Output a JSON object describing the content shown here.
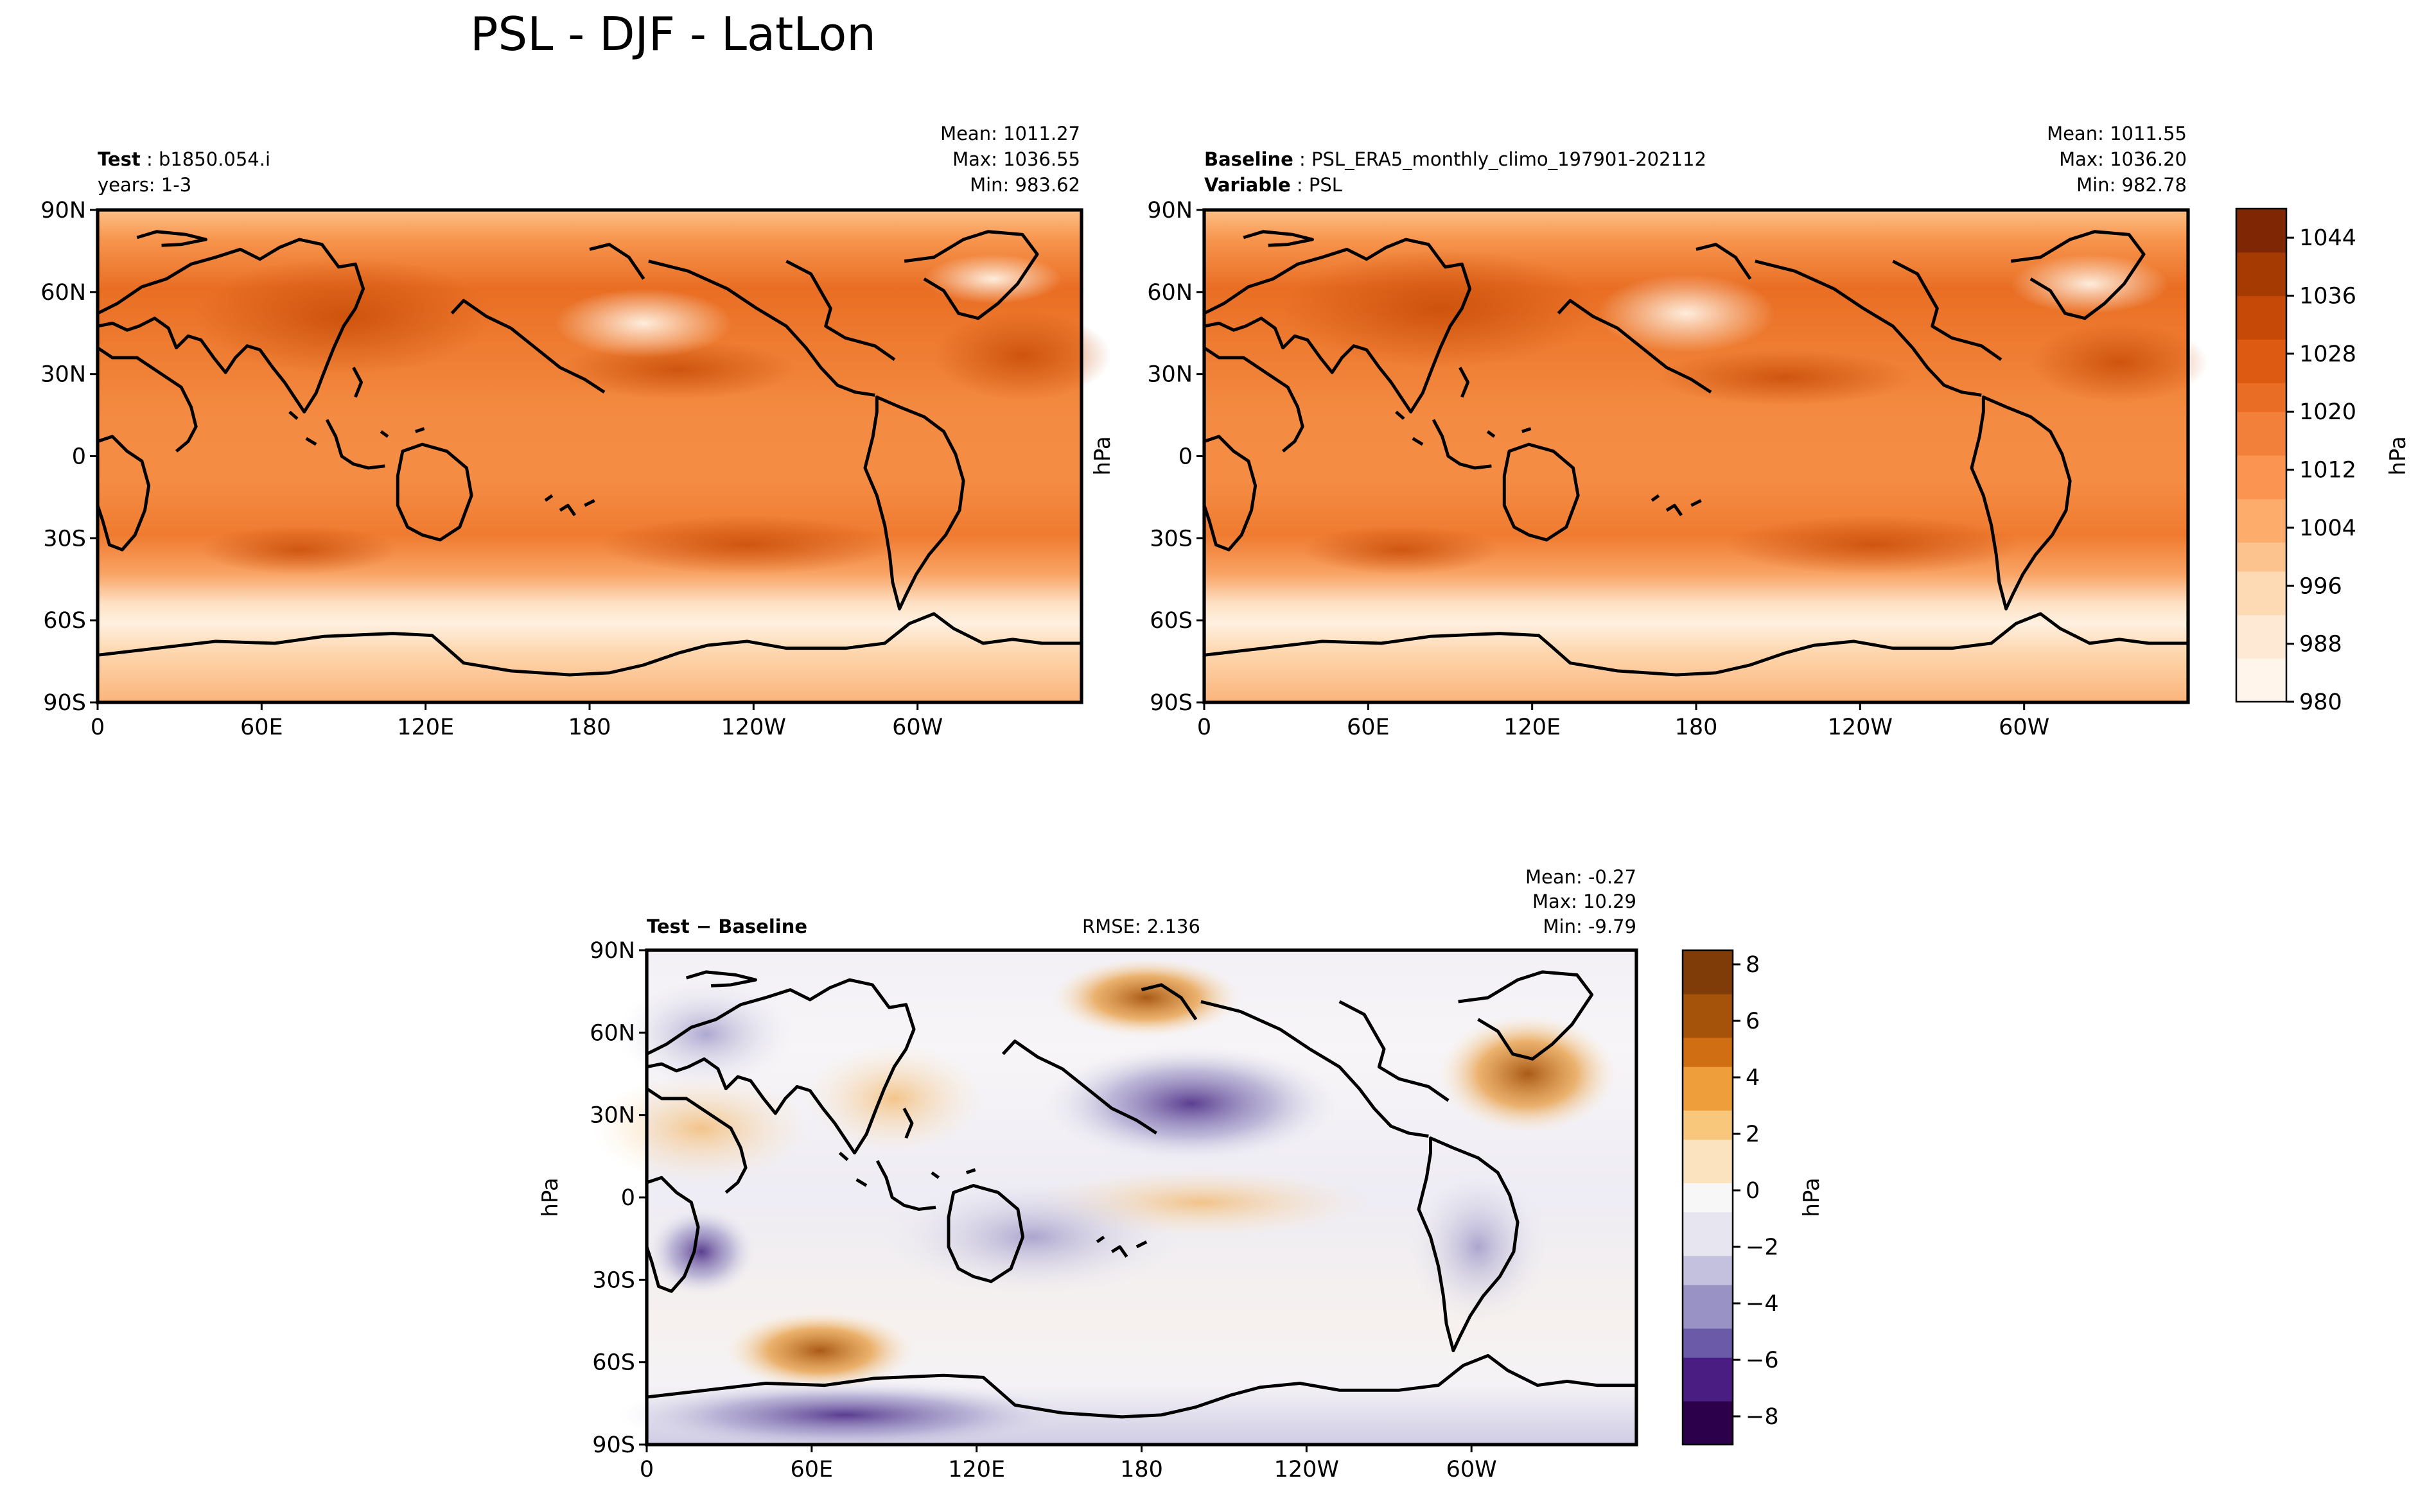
{
  "figure": {
    "title": "PSL - DJF - LatLon"
  },
  "colors": {
    "psl_ramp": [
      "#fff5eb",
      "#fee9d5",
      "#fdd9b4",
      "#fdc38f",
      "#fdac6c",
      "#fa9450",
      "#f2803a",
      "#ea6d25",
      "#dc5a12",
      "#c74907",
      "#a63a03",
      "#7f2704"
    ],
    "diff_ramp": [
      "#2d004b",
      "#4a1d82",
      "#6b5aa8",
      "#9992c5",
      "#c4c1df",
      "#e6e5f0",
      "#f7f7f7",
      "#fbe3c0",
      "#f9c77c",
      "#ef9e3c",
      "#cf6e13",
      "#a5520a",
      "#7f3b08"
    ],
    "land_outline": "#000000"
  },
  "chart_data": [
    {
      "type": "heatmap",
      "panel": "test",
      "left_label_bold": "Test",
      "left_label_value": "b1850.054.i",
      "left_label_line2": "years: 1-3",
      "stats": {
        "mean": "Mean: 1011.27",
        "max": "Max: 1036.55",
        "min": "Min: 983.62"
      },
      "ylabel": "",
      "yticks": [
        "90N",
        "60N",
        "30N",
        "0",
        "30S",
        "60S",
        "90S"
      ],
      "xticks": [
        "0",
        "60E",
        "120E",
        "180",
        "120W",
        "60W"
      ],
      "zlim": [
        980,
        1048
      ],
      "mean": 1011.27,
      "max": 1036.55,
      "min": 983.62
    },
    {
      "type": "heatmap",
      "panel": "baseline",
      "left_label_bold": "Baseline",
      "left_label_value": "PSL_ERA5_monthly_climo_197901-202112",
      "left_label_bold2": "Variable",
      "left_label_value2": "PSL",
      "stats": {
        "mean": "Mean: 1011.55",
        "max": "Max: 1036.20",
        "min": "Min: 982.78"
      },
      "ylabel": "hPa",
      "yticks": [
        "90N",
        "60N",
        "30N",
        "0",
        "30S",
        "60S",
        "90S"
      ],
      "xticks": [
        "0",
        "60E",
        "120E",
        "180",
        "120W",
        "60W"
      ],
      "zlim": [
        980,
        1048
      ],
      "mean": 1011.55,
      "max": 1036.2,
      "min": 982.78
    },
    {
      "type": "heatmap",
      "panel": "difference",
      "left_label": "Test − Baseline",
      "center_label": "RMSE: 2.136",
      "stats": {
        "mean": "Mean: -0.27",
        "max": "Max: 10.29",
        "min": "Min: -9.79"
      },
      "ylabel": "hPa",
      "yticks": [
        "90N",
        "60N",
        "30N",
        "0",
        "30S",
        "60S",
        "90S"
      ],
      "xticks": [
        "0",
        "60E",
        "120E",
        "180",
        "120W",
        "60W"
      ],
      "zlim": [
        -9,
        8.5
      ],
      "mean": -0.27,
      "max": 10.29,
      "min": -9.79,
      "rmse": 2.136
    }
  ],
  "colorbars": [
    {
      "name": "psl",
      "label": "hPa",
      "min": 980,
      "max": 1048,
      "ticks": [
        "1044",
        "1036",
        "1028",
        "1020",
        "1012",
        "1004",
        "996",
        "988",
        "980"
      ],
      "tick_values": [
        1044,
        1036,
        1028,
        1020,
        1012,
        1004,
        996,
        988,
        980
      ]
    },
    {
      "name": "diff",
      "label": "hPa",
      "min": -9,
      "max": 8.5,
      "ticks": [
        "8",
        "6",
        "4",
        "2",
        "0",
        "−2",
        "−4",
        "−6",
        "−8"
      ],
      "tick_values": [
        8,
        6,
        4,
        2,
        0,
        -2,
        -4,
        -6,
        -8
      ]
    }
  ]
}
